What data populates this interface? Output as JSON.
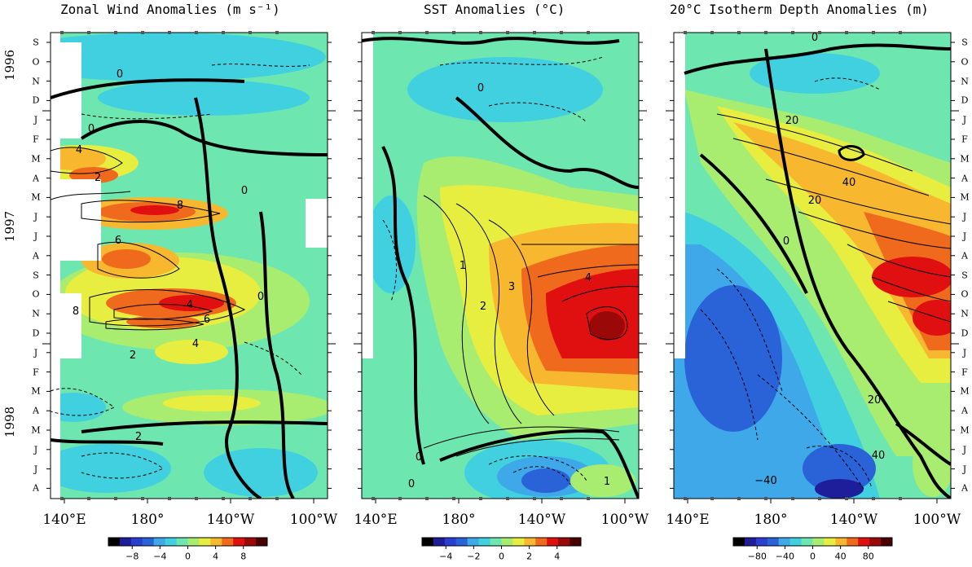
{
  "panels": [
    {
      "title": "Zonal Wind Anomalies (m s⁻¹)",
      "colorbar_ticks": [
        "−8",
        "−4",
        "0",
        "4",
        "8"
      ],
      "contour_labels": [
        "0",
        "0",
        "4",
        "2",
        "0",
        "8",
        "6",
        "4",
        "8",
        "6",
        "4",
        "2",
        "0",
        "2"
      ]
    },
    {
      "title": "SST Anomalies (°C)",
      "colorbar_ticks": [
        "−4",
        "−2",
        "0",
        "2",
        "4"
      ],
      "contour_labels": [
        "0",
        "0",
        "1",
        "2",
        "3",
        "4",
        "0",
        "1"
      ]
    },
    {
      "title": "20°C Isotherm Depth Anomalies (m)",
      "colorbar_ticks": [
        "−80",
        "−40",
        "0",
        "40",
        "80"
      ],
      "contour_labels": [
        "0",
        "20",
        "40",
        "20",
        "0",
        "20",
        "40",
        "−40"
      ]
    }
  ],
  "x_ticks": [
    "140°E",
    "180°",
    "140°W",
    "100°W"
  ],
  "month_labels": [
    "S",
    "O",
    "N",
    "D",
    "J",
    "F",
    "M",
    "A",
    "M",
    "J",
    "J",
    "A",
    "S",
    "O",
    "N",
    "D",
    "J",
    "F",
    "M",
    "A",
    "M",
    "J",
    "J",
    "A"
  ],
  "year_labels": [
    "1996",
    "1997",
    "1998"
  ],
  "colors": {
    "c1": "#1e1e9a",
    "c2": "#2a62d8",
    "c3": "#3fa8e8",
    "c4": "#40d0e0",
    "c5": "#6ee6b0",
    "c6": "#a8ec70",
    "c7": "#e8ee40",
    "c8": "#f7b830",
    "c9": "#f06a1e",
    "c10": "#e01010",
    "c11": "#9a0808"
  },
  "chart_data": [
    {
      "type": "heatmap",
      "title": "Zonal Wind Anomalies (m s⁻¹)",
      "x": [
        "140°E",
        "180°",
        "140°W",
        "100°W"
      ],
      "y_start": "Sep 1996",
      "y_end": "Aug 1998",
      "colorbar": [
        -8,
        -4,
        0,
        4,
        8
      ],
      "max_labeled": 8
    },
    {
      "type": "heatmap",
      "title": "SST Anomalies (°C)",
      "x": [
        "140°E",
        "180°",
        "140°W",
        "100°W"
      ],
      "y_start": "Sep 1996",
      "y_end": "Aug 1998",
      "colorbar": [
        -4,
        -2,
        0,
        2,
        4
      ],
      "max_labeled": 4
    },
    {
      "type": "heatmap",
      "title": "20°C Isotherm Depth Anomalies (m)",
      "x": [
        "140°E",
        "180°",
        "140°W",
        "100°W"
      ],
      "y_start": "Sep 1996",
      "y_end": "Aug 1998",
      "colorbar": [
        -80,
        -40,
        0,
        40,
        80
      ],
      "max_labeled": 40
    }
  ]
}
